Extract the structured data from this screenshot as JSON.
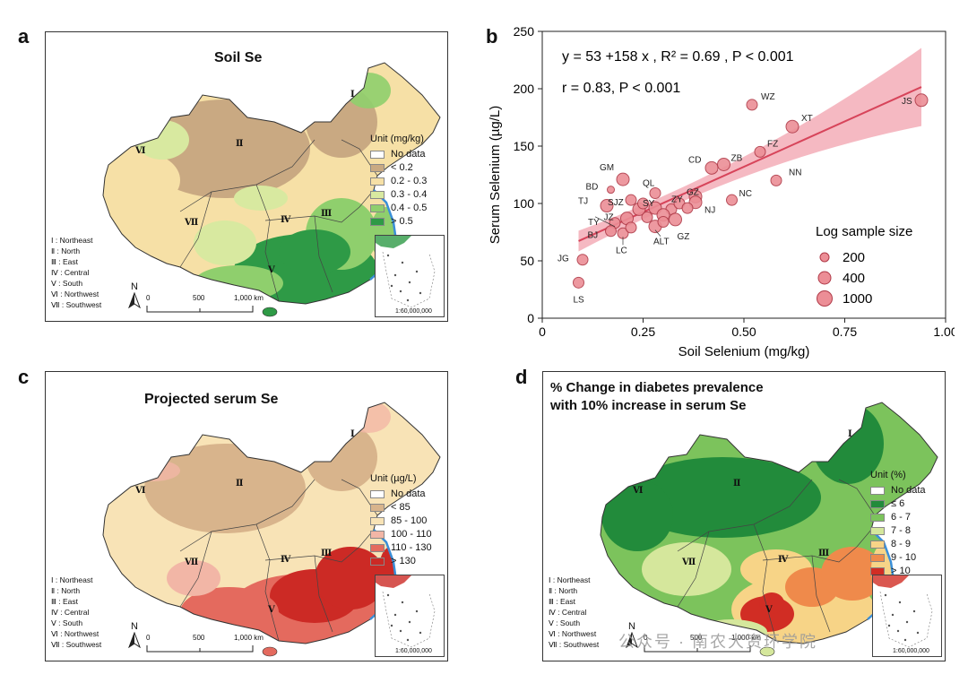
{
  "panels": {
    "a": {
      "letter": "a",
      "title": "Soil Se",
      "unit": "Unit (mg/kg)",
      "legend": [
        {
          "label": "No data",
          "color": "#ffffff"
        },
        {
          "label": "< 0.2",
          "color": "#c9a982"
        },
        {
          "label": "0.2 - 0.3",
          "color": "#f6e0a6"
        },
        {
          "label": "0.3 - 0.4",
          "color": "#d8e9a0"
        },
        {
          "label": "0.4 - 0.5",
          "color": "#8fcf6d"
        },
        {
          "label": "> 0.5",
          "color": "#2e9a46"
        }
      ]
    },
    "c": {
      "letter": "c",
      "title": "Projected serum Se",
      "unit": "Unit (µg/L)",
      "legend": [
        {
          "label": "No data",
          "color": "#ffffff"
        },
        {
          "label": "< 85",
          "color": "#d8b48c"
        },
        {
          "label": "85 - 100",
          "color": "#f8e3b6"
        },
        {
          "label": "100 - 110",
          "color": "#f2b6a6"
        },
        {
          "label": "110 - 130",
          "color": "#e46a5e"
        },
        {
          "label": "> 130",
          "color": "#cc2a25"
        }
      ]
    },
    "d": {
      "letter": "d",
      "title_line1": "% Change in diabetes prevalence",
      "title_line2": "with 10% increase in serum Se",
      "unit": "Unit (%)",
      "legend": [
        {
          "label": "No data",
          "color": "#ffffff"
        },
        {
          "label": "≤ 6",
          "color": "#228b3b"
        },
        {
          "label": "6 - 7",
          "color": "#7cc35c"
        },
        {
          "label": "7 - 8",
          "color": "#d5e79c"
        },
        {
          "label": "8 - 9",
          "color": "#f7d487"
        },
        {
          "label": "9 - 10",
          "color": "#ef8a4b"
        },
        {
          "label": "> 10",
          "color": "#d12d24"
        }
      ]
    },
    "b": {
      "letter": "b"
    }
  },
  "regions": [
    "Ⅰ : Northeast",
    "Ⅱ : North",
    "Ⅲ : East",
    "Ⅳ : Central",
    "Ⅴ : South",
    "Ⅵ : Northwest",
    "Ⅶ : Southwest"
  ],
  "map_labels": [
    "Ⅰ",
    "Ⅱ",
    "Ⅲ",
    "Ⅳ",
    "Ⅴ",
    "Ⅵ",
    "Ⅶ"
  ],
  "scale": {
    "north": "N",
    "zero": "0",
    "mid": "500",
    "end": "1,000 km",
    "inset_scale": "1:60,000,000"
  },
  "watermark": "公众号 · 南农大资环学院",
  "chart_data": {
    "type": "scatter",
    "xlabel": "Soil Selenium (mg/kg)",
    "ylabel": "Serum Selenium (µg/L)",
    "xlim": [
      0,
      1.0
    ],
    "ylim": [
      0,
      250
    ],
    "xticks": [
      "0",
      "0.25",
      "0.50",
      "0.75",
      "1.00"
    ],
    "yticks": [
      "0",
      "50",
      "100",
      "150",
      "200",
      "250"
    ],
    "equation": "y = 53 +158 x , R² = 0.69 , P < 0.001",
    "correlation": "r = 0.83, P < 0.001",
    "fit": {
      "intercept": 53,
      "slope": 158,
      "x_range": [
        0.09,
        0.94
      ]
    },
    "legend_title": "Log sample size",
    "size_legend": [
      {
        "label": "200",
        "r": 5
      },
      {
        "label": "400",
        "r": 7
      },
      {
        "label": "1000",
        "r": 8.5
      }
    ],
    "points": [
      {
        "label": "JS",
        "x": 0.94,
        "y": 190,
        "s": 7
      },
      {
        "label": "WZ",
        "x": 0.52,
        "y": 186,
        "s": 6
      },
      {
        "label": "XT",
        "x": 0.62,
        "y": 167,
        "s": 7
      },
      {
        "label": "FZ",
        "x": 0.54,
        "y": 145,
        "s": 6
      },
      {
        "label": "ZB",
        "x": 0.45,
        "y": 134,
        "s": 7
      },
      {
        "label": "CD",
        "x": 0.42,
        "y": 131,
        "s": 7
      },
      {
        "label": "NN",
        "x": 0.58,
        "y": 120,
        "s": 6
      },
      {
        "label": "NC",
        "x": 0.47,
        "y": 103,
        "s": 6
      },
      {
        "label": "GZ",
        "x": 0.38,
        "y": 106,
        "s": 7
      },
      {
        "label": "GM",
        "x": 0.2,
        "y": 121,
        "s": 7
      },
      {
        "label": "BD",
        "x": 0.17,
        "y": 112,
        "s": 4
      },
      {
        "label": "QL",
        "x": 0.28,
        "y": 109,
        "s": 6
      },
      {
        "label": "SJZ",
        "x": 0.22,
        "y": 103,
        "s": 6
      },
      {
        "label": "SY",
        "x": 0.28,
        "y": 96,
        "s": 7
      },
      {
        "label": "ZY",
        "x": 0.32,
        "y": 95,
        "s": 6
      },
      {
        "label": "TJ",
        "x": 0.16,
        "y": 98,
        "s": 7
      },
      {
        "label": "NJ",
        "x": 0.38,
        "y": 101,
        "s": 7
      },
      {
        "label": "JZ",
        "x": 0.21,
        "y": 87,
        "s": 7
      },
      {
        "label": "TY",
        "x": 0.18,
        "y": 83,
        "s": 6
      },
      {
        "label": "BJ",
        "x": 0.17,
        "y": 76,
        "s": 6
      },
      {
        "label": "LC",
        "x": 0.2,
        "y": 74,
        "s": 6
      },
      {
        "label": "ALT",
        "x": 0.28,
        "y": 80,
        "s": 7
      },
      {
        "label": "GZ",
        "x": 0.33,
        "y": 86,
        "s": 7
      },
      {
        "label": "JG",
        "x": 0.1,
        "y": 51,
        "s": 6
      },
      {
        "label": "LS",
        "x": 0.09,
        "y": 31,
        "s": 6
      },
      {
        "label": "",
        "x": 0.24,
        "y": 95,
        "s": 7
      },
      {
        "label": "",
        "x": 0.3,
        "y": 90,
        "s": 7
      },
      {
        "label": "",
        "x": 0.26,
        "y": 88,
        "s": 6
      },
      {
        "label": "",
        "x": 0.34,
        "y": 100,
        "s": 6
      },
      {
        "label": "",
        "x": 0.36,
        "y": 96,
        "s": 6
      },
      {
        "label": "",
        "x": 0.25,
        "y": 100,
        "s": 6
      },
      {
        "label": "",
        "x": 0.22,
        "y": 79,
        "s": 6
      },
      {
        "label": "",
        "x": 0.3,
        "y": 84,
        "s": 6
      }
    ],
    "colors": {
      "point": "#ec8e96",
      "point_edge": "#b03a48",
      "fit": "#d7445a",
      "band": "#f2a2ad"
    }
  }
}
